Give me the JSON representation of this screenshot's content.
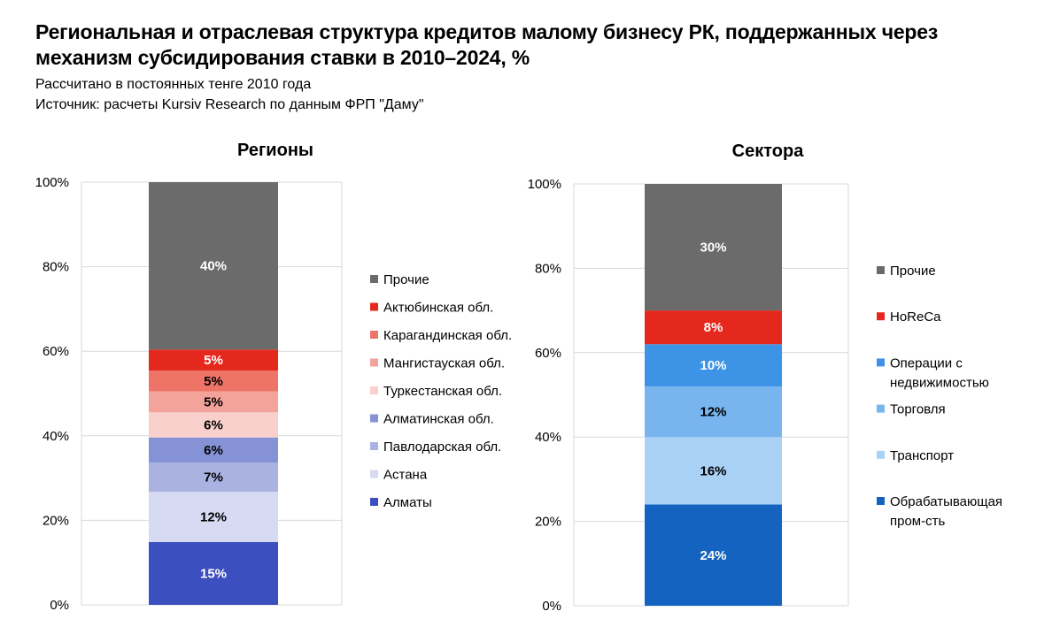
{
  "title": "Региональная и отраслевая структура кредитов малому бизнесу РК, поддержанных через механизм субсидирования ставки в 2010–2024, %",
  "subtitle": "Рассчитано в постоянных тенге 2010 года",
  "source": "Источник: расчеты Kursiv Research по данным ФРП \"Даму\"",
  "chart_data": [
    {
      "type": "bar",
      "stacked": true,
      "title": "Регионы",
      "ylim": [
        0,
        100
      ],
      "yticks": [
        "0%",
        "20%",
        "40%",
        "60%",
        "80%",
        "100%"
      ],
      "grid": true,
      "legend": "right",
      "series": [
        {
          "name": "Алматы",
          "value": 15,
          "label": "15%",
          "color": "#3c4fbf",
          "label_color": "#ffffff"
        },
        {
          "name": "Астана",
          "value": 12,
          "label": "12%",
          "color": "#d6daf2",
          "label_color": "#000000"
        },
        {
          "name": "Павлодарская обл.",
          "value": 7,
          "label": "7%",
          "color": "#aab2e2",
          "label_color": "#000000"
        },
        {
          "name": "Алматинская обл.",
          "value": 6,
          "label": "6%",
          "color": "#8593d6",
          "label_color": "#000000"
        },
        {
          "name": "Туркестанская обл.",
          "value": 6,
          "label": "6%",
          "color": "#f9d0cb",
          "label_color": "#000000"
        },
        {
          "name": "Мангистауская обл.",
          "value": 5,
          "label": "5%",
          "color": "#f4a39a",
          "label_color": "#000000"
        },
        {
          "name": "Карагандинская обл.",
          "value": 5,
          "label": "5%",
          "color": "#ee7468",
          "label_color": "#000000"
        },
        {
          "name": "Актюбинская обл.",
          "value": 5,
          "label": "5%",
          "color": "#e5281e",
          "label_color": "#ffffff"
        },
        {
          "name": "Прочие",
          "value": 40,
          "label": "40%",
          "color": "#6b6b6b",
          "label_color": "#ffffff"
        }
      ]
    },
    {
      "type": "bar",
      "stacked": true,
      "title": "Сектора",
      "ylim": [
        0,
        100
      ],
      "yticks": [
        "0%",
        "20%",
        "40%",
        "60%",
        "80%",
        "100%"
      ],
      "grid": true,
      "legend": "right",
      "series": [
        {
          "name": "Обрабатывающая пром-сть",
          "legend_lines": [
            "Обрабатывающая",
            "пром-сть"
          ],
          "value": 24,
          "label": "24%",
          "color": "#1563c0",
          "label_color": "#ffffff"
        },
        {
          "name": "Транспорт",
          "legend_lines": [
            "Транспорт"
          ],
          "value": 16,
          "label": "16%",
          "color": "#a9d1f6",
          "label_color": "#000000"
        },
        {
          "name": "Торговля",
          "legend_lines": [
            "Торговля"
          ],
          "value": 12,
          "label": "12%",
          "color": "#78b5ef",
          "label_color": "#000000"
        },
        {
          "name": "Операции с недвижимостью",
          "legend_lines": [
            "Операции с",
            "недвижимостью"
          ],
          "value": 10,
          "label": "10%",
          "color": "#3d93e6",
          "label_color": "#ffffff"
        },
        {
          "name": "HoReCa",
          "legend_lines": [
            "HoReCa"
          ],
          "value": 8,
          "label": "8%",
          "color": "#e5281e",
          "label_color": "#ffffff"
        },
        {
          "name": "Прочие",
          "legend_lines": [
            "Прочие"
          ],
          "value": 30,
          "label": "30%",
          "color": "#6b6b6b",
          "label_color": "#ffffff"
        }
      ]
    }
  ]
}
